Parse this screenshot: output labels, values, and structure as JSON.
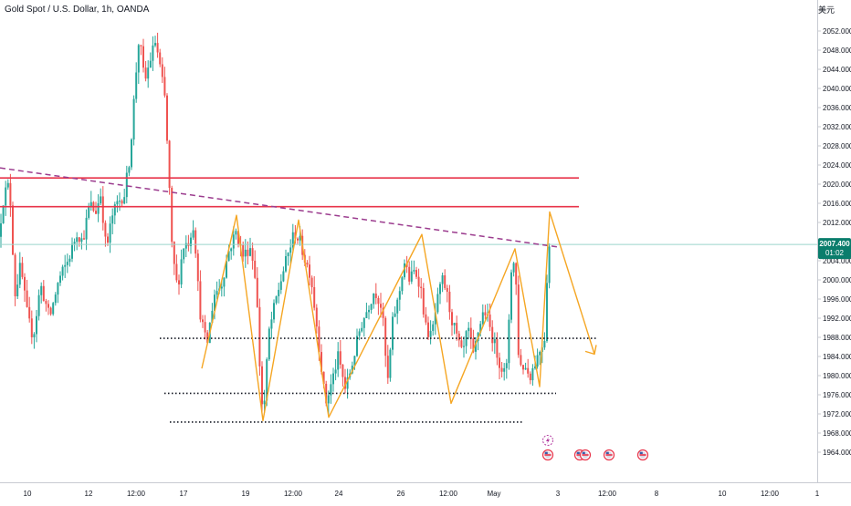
{
  "header": {
    "symbol_title": "Gold Spot / U.S. Dollar, 1h, OANDA",
    "currency_unit": "美元"
  },
  "price_scale": {
    "ticks": [
      "2052.000",
      "2048.000",
      "2044.000",
      "2040.000",
      "2036.000",
      "2032.000",
      "2028.000",
      "2024.000",
      "2020.000",
      "2016.000",
      "2012.000",
      "2004.000",
      "2000.000",
      "1996.000",
      "1992.000",
      "1988.000",
      "1984.000",
      "1980.000",
      "1976.000",
      "1972.000",
      "1968.000",
      "1964.000"
    ],
    "last_price_label": "2007.400",
    "countdown_label": "01:02"
  },
  "time_scale": {
    "ticks": [
      "10",
      "12",
      "12:00",
      "17",
      "19",
      "12:00",
      "24",
      "26",
      "12:00",
      "May",
      "3",
      "12:00",
      "8",
      "10",
      "12:00",
      "1"
    ]
  },
  "colors": {
    "up_candle": "#26a69a",
    "down_candle": "#ef5350",
    "resistance_line": "#e8344a",
    "trendline": "#9c3d8f",
    "zigzag": "#f5a623",
    "last_price": "#0a7d6c",
    "event_marker": "#e8344a"
  },
  "chart_data": {
    "type": "candlestick",
    "title": "Gold Spot / U.S. Dollar, 1h, OANDA",
    "unit": "美元",
    "timeframe": "1h",
    "ylim": [
      1961,
      2057
    ],
    "last_price": 2007.4,
    "x_ticks": [
      "10",
      "12",
      "12:00",
      "17",
      "19",
      "12:00",
      "24",
      "26",
      "12:00",
      "May",
      "3",
      "12:00",
      "8",
      "10",
      "12:00",
      "1"
    ],
    "close_path": [
      [
        0,
        2009
      ],
      [
        6,
        2018
      ],
      [
        12,
        2020
      ],
      [
        18,
        1997
      ],
      [
        24,
        2003
      ],
      [
        32,
        1992
      ],
      [
        38,
        1988
      ],
      [
        46,
        1999
      ],
      [
        56,
        1992
      ],
      [
        66,
        2000
      ],
      [
        76,
        2004
      ],
      [
        86,
        2010
      ],
      [
        92,
        2008
      ],
      [
        100,
        2016
      ],
      [
        106,
        2014
      ],
      [
        112,
        2018
      ],
      [
        118,
        2006
      ],
      [
        124,
        2013
      ],
      [
        130,
        2016
      ],
      [
        138,
        2018
      ],
      [
        144,
        2026
      ],
      [
        150,
        2042
      ],
      [
        154,
        2051
      ],
      [
        160,
        2041
      ],
      [
        166,
        2046
      ],
      [
        172,
        2050
      ],
      [
        178,
        2043
      ],
      [
        182,
        2038
      ],
      [
        186,
        2024
      ],
      [
        190,
        2006
      ],
      [
        196,
        1998
      ],
      [
        202,
        2007
      ],
      [
        208,
        2008
      ],
      [
        214,
        2012
      ],
      [
        220,
        1994
      ],
      [
        228,
        1986
      ],
      [
        236,
        1997
      ],
      [
        244,
        1999
      ],
      [
        252,
        2006
      ],
      [
        260,
        2010
      ],
      [
        268,
        2005
      ],
      [
        276,
        2007
      ],
      [
        282,
        2000
      ],
      [
        287,
        1978
      ],
      [
        290,
        1971
      ],
      [
        296,
        1989
      ],
      [
        304,
        1996
      ],
      [
        312,
        2002
      ],
      [
        318,
        2006
      ],
      [
        324,
        2010
      ],
      [
        330,
        2008
      ],
      [
        336,
        2004
      ],
      [
        342,
        2001
      ],
      [
        350,
        1988
      ],
      [
        358,
        1974
      ],
      [
        364,
        1978
      ],
      [
        372,
        1984
      ],
      [
        380,
        1977
      ],
      [
        388,
        1983
      ],
      [
        396,
        1990
      ],
      [
        404,
        1994
      ],
      [
        412,
        1998
      ],
      [
        420,
        1994
      ],
      [
        426,
        1978
      ],
      [
        432,
        1992
      ],
      [
        438,
        1996
      ],
      [
        444,
        2004
      ],
      [
        450,
        2000
      ],
      [
        456,
        2002
      ],
      [
        462,
        1999
      ],
      [
        468,
        1990
      ],
      [
        474,
        1988
      ],
      [
        480,
        1995
      ],
      [
        486,
        2000
      ],
      [
        490,
        1998
      ],
      [
        496,
        1992
      ],
      [
        502,
        1988
      ],
      [
        508,
        1984
      ],
      [
        514,
        1990
      ],
      [
        520,
        1984
      ],
      [
        526,
        1990
      ],
      [
        532,
        1994
      ],
      [
        538,
        1990
      ],
      [
        544,
        1986
      ],
      [
        550,
        1982
      ],
      [
        556,
        1980
      ],
      [
        562,
        2004
      ],
      [
        566,
        2003
      ],
      [
        570,
        1982
      ],
      [
        576,
        1982
      ],
      [
        582,
        1980
      ],
      [
        588,
        1983
      ],
      [
        594,
        1986
      ],
      [
        598,
        1988
      ],
      [
        602,
        2007
      ]
    ],
    "horizontal_lines": [
      {
        "style": "solid",
        "price": 2021.3
      },
      {
        "style": "solid",
        "price": 2015.3
      },
      {
        "style": "dotted",
        "price": 1987.8
      },
      {
        "style": "dotted",
        "price": 1976.3
      },
      {
        "style": "dotted",
        "price": 1970.3
      }
    ],
    "trendline": {
      "style": "dashed",
      "from": [
        0,
        2023.4
      ],
      "to": [
        610,
        2006.9
      ]
    },
    "zigzag": [
      [
        221,
        1981.5
      ],
      [
        259,
        2013.5
      ],
      [
        288,
        1970.6
      ],
      [
        327,
        2012.5
      ],
      [
        360,
        1971.3
      ],
      [
        462,
        2009.5
      ],
      [
        494,
        1974.2
      ],
      [
        564,
        2006.5
      ],
      [
        591,
        1977.7
      ],
      [
        602,
        2014.2
      ],
      [
        651,
        1984.5
      ]
    ],
    "zigzag_arrowhead_direction": "down-right",
    "event_markers": [
      {
        "kind": "bolt",
        "row": 1,
        "pos": 600
      },
      {
        "kind": "flag",
        "row": 2,
        "pos": 600
      },
      {
        "kind": "flag",
        "row": 2,
        "pos": 635
      },
      {
        "kind": "flag",
        "row": 2,
        "pos": 641
      },
      {
        "kind": "flag",
        "row": 2,
        "pos": 667
      },
      {
        "kind": "flag",
        "row": 2,
        "pos": 704
      }
    ]
  }
}
